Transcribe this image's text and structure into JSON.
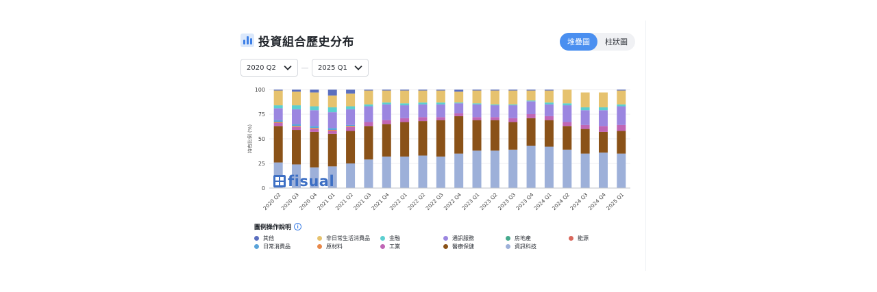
{
  "title": "投資組合歷史分布",
  "toggle": {
    "stacked_label": "堆疊圖",
    "bar_label": "柱狀圖"
  },
  "range": {
    "start": "2020 Q2",
    "separator": "—",
    "end": "2025 Q1"
  },
  "legend_title": "圖例操作說明",
  "logo_text": "fisual",
  "chart_data": {
    "type": "bar",
    "stacked": true,
    "ylabel": "持有比例 (%)",
    "ylim": [
      0,
      100
    ],
    "yticks": [
      0,
      25,
      50,
      75,
      100
    ],
    "grid": true,
    "legend_position": "bottom",
    "categories": [
      "2020 Q2",
      "2020 Q3",
      "2020 Q4",
      "2021 Q1",
      "2021 Q2",
      "2021 Q3",
      "2021 Q4",
      "2022 Q1",
      "2022 Q2",
      "2022 Q3",
      "2022 Q4",
      "2023 Q1",
      "2023 Q2",
      "2023 Q3",
      "2023 Q4",
      "2024 Q1",
      "2024 Q2",
      "2024 Q3",
      "2024 Q4",
      "2025 Q1"
    ],
    "series": [
      {
        "name": "資訊科技",
        "color": "#9db0d9",
        "values": [
          26,
          24,
          21,
          22,
          25,
          29,
          32,
          32,
          33,
          32,
          35,
          38,
          38,
          39,
          43,
          42,
          39,
          35,
          36,
          35
        ]
      },
      {
        "name": "醫療保健",
        "color": "#8a5218",
        "values": [
          37,
          35,
          36,
          33,
          33,
          34,
          33,
          35,
          35,
          37,
          38,
          31,
          31,
          28,
          28,
          27,
          24,
          25,
          21,
          23
        ]
      },
      {
        "name": "工業",
        "color": "#c066b5",
        "values": [
          3,
          3,
          3,
          3,
          4,
          4,
          4,
          4,
          4,
          3,
          3,
          3,
          3,
          4,
          4,
          4,
          4,
          4,
          6,
          6
        ]
      },
      {
        "name": "原材料",
        "color": "#e8884a",
        "values": [
          1,
          1,
          1,
          1,
          1,
          0,
          0,
          0,
          0,
          0,
          0,
          0,
          0,
          0,
          0,
          0,
          0,
          0,
          0,
          0
        ]
      },
      {
        "name": "日常消費品",
        "color": "#5aa3d9",
        "values": [
          2,
          2,
          2,
          2,
          1,
          0,
          0,
          0,
          0,
          0,
          0,
          0,
          0,
          0,
          0,
          0,
          0,
          0,
          0,
          0
        ]
      },
      {
        "name": "通訊服務",
        "color": "#9b86e0",
        "values": [
          12,
          15,
          16,
          16,
          16,
          16,
          16,
          13,
          13,
          13,
          10,
          13,
          12,
          13,
          13,
          12,
          17,
          15,
          16,
          19
        ]
      },
      {
        "name": "房地產",
        "color": "#45a98c",
        "values": [
          0,
          0,
          0,
          0,
          0,
          0,
          0,
          0,
          0,
          0,
          0,
          0,
          0,
          0,
          0,
          0,
          0,
          0,
          0,
          0
        ]
      },
      {
        "name": "金融",
        "color": "#5ccfd0",
        "values": [
          3,
          4,
          4,
          5,
          3,
          2,
          2,
          2,
          2,
          2,
          1,
          1,
          1,
          1,
          1,
          2,
          2,
          3,
          3,
          2
        ]
      },
      {
        "name": "非日常生活消費品",
        "color": "#e6c26e",
        "values": [
          15,
          14,
          14,
          12,
          13,
          14,
          12,
          13,
          12,
          12,
          11,
          13,
          14,
          14,
          10,
          12,
          14,
          15,
          15,
          14
        ]
      },
      {
        "name": "能源",
        "color": "#d9675c",
        "values": [
          0,
          0,
          0,
          0,
          0,
          0,
          0,
          0,
          0,
          0,
          0,
          0,
          0,
          0,
          0,
          0,
          0,
          0,
          0,
          0
        ]
      },
      {
        "name": "其他",
        "color": "#5b6fbf",
        "values": [
          1,
          2,
          3,
          6,
          4,
          1,
          1,
          1,
          1,
          1,
          2,
          1,
          1,
          1,
          1,
          1,
          0,
          0,
          0,
          1
        ]
      }
    ]
  },
  "legend": [
    {
      "label": "其他",
      "color": "#5b6fbf"
    },
    {
      "label": "非日常生活消費品",
      "color": "#e6c26e"
    },
    {
      "label": "金融",
      "color": "#5ccfd0"
    },
    {
      "label": "通訊服務",
      "color": "#9b86e0"
    },
    {
      "label": "房地產",
      "color": "#45a98c"
    },
    {
      "label": "能源",
      "color": "#d9675c"
    },
    {
      "label": "日常消費品",
      "color": "#5aa3d9"
    },
    {
      "label": "原材料",
      "color": "#e8884a"
    },
    {
      "label": "工業",
      "color": "#c066b5"
    },
    {
      "label": "醫療保健",
      "color": "#8a5218"
    },
    {
      "label": "資訊科技",
      "color": "#9db0d9"
    }
  ]
}
